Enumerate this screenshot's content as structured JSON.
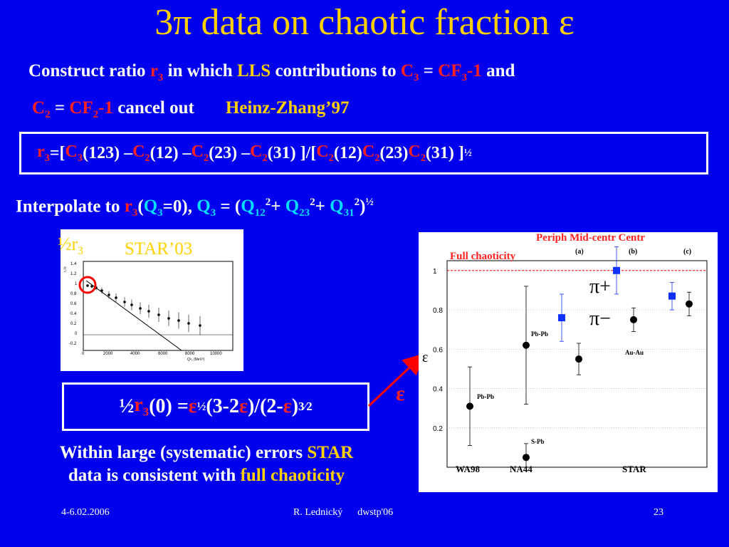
{
  "title": "3π data on chaotic fraction ε",
  "line1": {
    "p1": "Construct ratio ",
    "r3": "r",
    "r3sub": "3",
    "p2": " in which ",
    "lls": "LLS",
    "p3": " contributions  to ",
    "c3": "C",
    "c3sub": "3",
    "eq": " = ",
    "cf3": "CF",
    "cf3sub": "3",
    "m1": "-1",
    "p4": " and"
  },
  "line2": {
    "c2": "C",
    "c2sub": "2",
    "eq": " = ",
    "cf2": "CF",
    "cf2sub": "2",
    "m1": "-1",
    "p1": " cancel out",
    "ref": "Heinz-Zhang’97"
  },
  "formula1": {
    "r3": "r",
    "r3sub": "3",
    "eq": " =[",
    "c": "C",
    "s3": "3",
    "s2": "2",
    "a": "(123) – ",
    "b": "(12) – ",
    "c23": "(23) – ",
    "d": "(31) ]/[",
    "e": "(12) ",
    "f": "(23) ",
    "g": "(31) ]",
    "half": "½"
  },
  "line3": {
    "p1": "Interpolate to ",
    "r": "r",
    "rsub": "3",
    "p2": "(",
    "q": "Q",
    "qsub": "3",
    "p3": "=0),   ",
    "q3": "Q",
    "q3sub": "3",
    "p4": " = (",
    "q12": "Q",
    "q12sub": "12",
    "sq": "2",
    "plus": "+ ",
    "q23sub": "23",
    "q31sub": "31",
    "p5": ")",
    "half": "½"
  },
  "fig_left": {
    "label_half": "½",
    "label_r": "r",
    "label_sub": "3",
    "label_star": "STAR’03",
    "yaxis": "r₃½",
    "xaxis": "Q²₃ (MeV²)",
    "yticks": [
      "1.4",
      "1.2",
      "1",
      "0.8",
      "0.6",
      "0.4",
      "0.2",
      "0",
      "-0.2"
    ],
    "xticks": [
      "0",
      "2000",
      "4000",
      "6000",
      "8000",
      "10000"
    ]
  },
  "chart_data": {
    "type": "scatter",
    "header": "Periph Mid-centr Centr",
    "line_label": "Full chaoticity",
    "ylabel": "ε",
    "ylim": [
      0,
      1.05
    ],
    "yticks": [
      "1",
      "0.8",
      "0.6",
      "0.4",
      "0.2"
    ],
    "panel_labels": [
      "(a)",
      "(b)",
      "(c)"
    ],
    "group_labels": [
      "WA98",
      "NA44",
      "STAR"
    ],
    "annotations": [
      "Pb-Pb",
      "Pb-Pb",
      "S-Pb",
      "Au-Au"
    ],
    "legend": [
      "π+",
      "π−"
    ],
    "series": [
      {
        "name": "π+",
        "points": [
          {
            "x": "STAR periph",
            "y": 0.76,
            "err": 0.12
          },
          {
            "x": "STAR mid",
            "y": 1.0,
            "err": 0.12
          },
          {
            "x": "STAR centr",
            "y": 0.87,
            "err": 0.07
          }
        ]
      },
      {
        "name": "π−",
        "points": [
          {
            "x": "STAR periph",
            "y": 0.55,
            "err": 0.08
          },
          {
            "x": "STAR mid",
            "y": 0.75,
            "err": 0.06
          },
          {
            "x": "STAR centr",
            "y": 0.83,
            "err": 0.06
          }
        ]
      },
      {
        "name": "WA98 Pb-Pb",
        "points": [
          {
            "x": "WA98",
            "y": 0.31,
            "err": 0.2
          }
        ]
      },
      {
        "name": "NA44 Pb-Pb",
        "points": [
          {
            "x": "NA44",
            "y": 0.62,
            "err": 0.3
          }
        ]
      },
      {
        "name": "NA44 S-Pb",
        "points": [
          {
            "x": "NA44",
            "y": 0.05,
            "err": 0.07
          }
        ]
      }
    ]
  },
  "formula2": {
    "half": "½",
    "r": "r",
    "rsub": "3",
    "p1": "(0) =",
    "eps": "ε",
    "h": "½",
    "p2": "(3-2",
    "p3": ")/(2-",
    "p4": ")",
    "exp": "3⁄2"
  },
  "side_eps": "ε",
  "conclusion": {
    "l1a": "Within large (systematic) errors ",
    "star": "STAR",
    "l2a": "data is consistent with ",
    "fc": "full chaoticity"
  },
  "footer": {
    "date": "4-6.02.2006",
    "author": "R. Lednický      dwstp'06",
    "page": "23"
  }
}
